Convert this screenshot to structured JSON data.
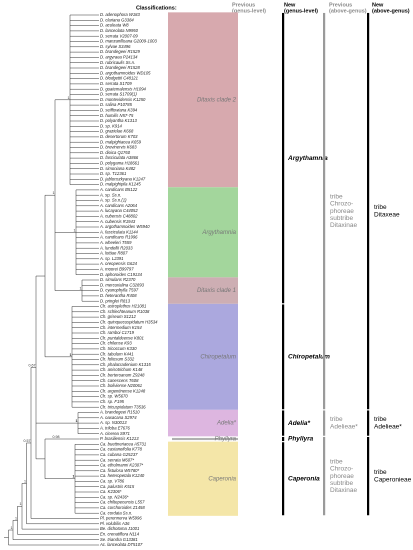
{
  "headers": {
    "classifications": "Classifications:",
    "previous_genus": [
      "Previous",
      "(genus-level)"
    ],
    "new_genus": [
      "New",
      "(genus-level)"
    ],
    "previous_above": [
      "Previous",
      "(above-genus)"
    ],
    "new_above": [
      "New",
      "(above-genus)"
    ]
  },
  "groups": [
    {
      "previous_above": [
        "tribe",
        "Chrozo-",
        "phoreae",
        "subtribe",
        "Ditaxinae"
      ],
      "new_above": [
        "tribe",
        "Ditaxeae"
      ],
      "genera": [
        {
          "new": "Argythamnia",
          "support": "1",
          "clades": [
            {
              "previous": "Ditaxis clade 2",
              "color": "#d7a9ae",
              "support": "1",
              "leaves": [
                "D. adenophora W183",
                "D. clariana G3384",
                "D. aculeata W8",
                "D. lanceolata N9950",
                "D. serrata V2007-09",
                "D. manzanilloana G2009-1003",
                "D. sylvae S3496",
                "D. brandegeei R1529",
                "D. argyraea P24134",
                "D. rubricaulis Ss.n.",
                "D. brandegeei R1528",
                "D. argothamnoides WD105",
                "D. blodgettii C48121",
                "D. serrata S1709",
                "D. guatemalensis H1094",
                "D. serrata S1709(1)",
                "D. montevidensis K1250",
                "D. salina P10785",
                "D. seiffowiana K394",
                "D. humilis N57-75",
                "D. polyantha K1313",
                "D. sp. K914",
                "D. grazielae K668",
                "D. desertorum K703",
                "D. malpighiacea K659",
                "D. brevinervis K683",
                "D. dioica Q1760",
                "D. fasciculata A3866",
                "D. polygama H18661",
                "D. simoniana K482",
                "D. sp. T12361",
                "D. jablonszkyana K1247",
                "D. malpighipila K1245"
              ]
            },
            {
              "previous": "Argythamnia",
              "color": "#a3d69c",
              "support": "1",
              "leaves": [
                "A. candicans B5122",
                "A. sp. Ss.n.",
                "A. sp. Ss.n.(1)",
                "A. candicans A2064",
                "A. lucayana C44052",
                "A. cubensis C48802",
                "A. cubensis R1943",
                "A. argothamnoides W5940",
                "A. fasciculata K1144",
                "A. candicans R1996",
                "A. wheeleri T559",
                "A. lundellii R2033",
                "A. lottiae R807",
                "A. sp. L2391",
                "A. oreopensis G624",
                "A. moorei B99797",
                "D. aphoroides C19134"
              ]
            },
            {
              "previous": "Ditaxis clade 1",
              "color": "#cdaeb3",
              "support": "1",
              "leaves": [
                "D. simulans R2370",
                "D. mercurialina C32893",
                "D. cyanophylla T597",
                "D. heterantha R408",
                "D. pringlei R813"
              ]
            }
          ]
        },
        {
          "new": "Chiropetalum",
          "support": "1",
          "clades": [
            {
              "previous": "Chiropetalum",
              "color": "#aba8de",
              "support": "1",
              "leaves": [
                "Ch. astroplethos H21081",
                "Ch. schlechteanum R1038",
                "Ch. griseum S1212",
                "Ch. quinquecuspidatum H3534",
                "Ch. intermedium K154",
                "Ch. ramboi C1719",
                "Ch. puntaldeense K801",
                "Ch. chilense K93",
                "Ch. tricoccum K330",
                "Ch. tabulum K441",
                "Ch. foliosum S332",
                "Ch. phalacradenium K1315",
                "Ch. anisotrichum K148",
                "Ch. berteroanum Z9248",
                "Ch. canescens T608",
                "Ch. boliviense N20061",
                "Ch. argentinense K1248",
                "Ch. sp. W5670",
                "Ch. sp. F195",
                "Ch. tricuspidatum T3536"
              ]
            }
          ]
        }
      ]
    },
    {
      "previous_above": [
        "tribe",
        "Adelieae*"
      ],
      "new_above": [
        "tribe",
        "Adelieae*"
      ],
      "genera": [
        {
          "new": "Adelia*",
          "support": "1",
          "clades": [
            {
              "previous": "Adelia*",
              "color": "#ddb6e0",
              "support": "1",
              "leaves": [
                "A. brandegeei R1510",
                "A. oaxacana S2974",
                "A. sp. N30013",
                "A. triloba E7676",
                "A. cinerea S971"
              ]
            }
          ]
        }
      ]
    },
    {
      "previous_above": [
        "tribe",
        "Chrozo-",
        "phoreae",
        "subtribe",
        "Ditaxinae"
      ],
      "new_above": [
        "tribe",
        "Caperonieae"
      ],
      "genera": [
        {
          "new": "Phyllyra",
          "support": "0.98",
          "clades": [
            {
              "previous": "Phyllyra",
              "color": "#b0b0b0",
              "leaves": [
                "P. brasiliensis K1213"
              ]
            }
          ]
        },
        {
          "new": "Caperonia",
          "support": "1",
          "clades": [
            {
              "previous": "Caperonia",
              "color": "#f4e6a8",
              "support": "1",
              "leaves": [
                "Ca. buettneriacea A5731",
                "Ca. castaneifolia K778",
                "Ca. cubana G25237",
                "Ca. serrata M607*",
                "Ca. ethulmanni K2307*",
                "Ca. fistulosa W5780*",
                "Ca. heteropetala K1240",
                "Ca. sp. V786",
                "Ca. palustris K515",
                "Ca. K2306*",
                "Ca. sp. N2436*",
                "Ca. chiltepecensis L557",
                "Ca. corchoroides Z1458",
                "Ca. cordata Ss.n."
              ]
            }
          ]
        }
      ]
    }
  ],
  "outgroups": [
    "Pl. perennerva W5996",
    "Pl. volubilis A36",
    "Be. dichotoma J1001",
    "En. crenatiflora N114",
    "Se. triandra G13381",
    "Ac. lanceolata DT5107"
  ],
  "outgroup_support": [
    "0.67",
    "0.57",
    "1",
    "1",
    "1",
    "1"
  ]
}
